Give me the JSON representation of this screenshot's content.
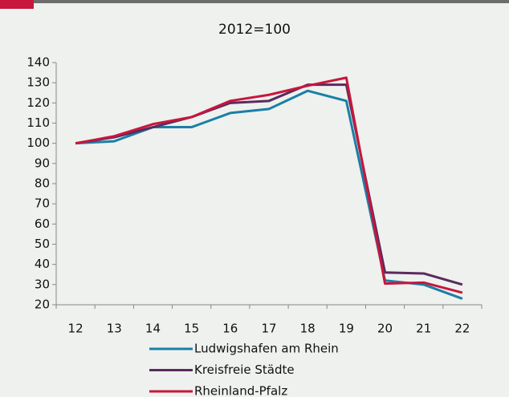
{
  "chart_data": {
    "type": "line",
    "title": "2012=100",
    "categories": [
      "12",
      "13",
      "14",
      "15",
      "16",
      "17",
      "18",
      "19",
      "20",
      "21",
      "22"
    ],
    "series": [
      {
        "name": "Ludwigshafen am Rhein",
        "color": "#1a7fa6",
        "values": [
          100,
          101,
          108,
          108,
          115,
          117,
          126,
          121,
          32,
          30,
          23
        ]
      },
      {
        "name": "Kreisfreie Städte",
        "color": "#5b2a5e",
        "values": [
          100,
          103,
          108,
          113,
          120,
          121,
          129,
          129,
          36,
          35.5,
          30
        ]
      },
      {
        "name": "Rheinland-Pfalz",
        "color": "#c8163d",
        "values": [
          100,
          103.5,
          109.5,
          113,
          121,
          124,
          128.5,
          132.5,
          30.5,
          31,
          26
        ]
      }
    ],
    "ylim": [
      20,
      140
    ],
    "yticks": [
      20,
      30,
      40,
      50,
      60,
      70,
      80,
      90,
      100,
      110,
      120,
      130,
      140
    ]
  }
}
